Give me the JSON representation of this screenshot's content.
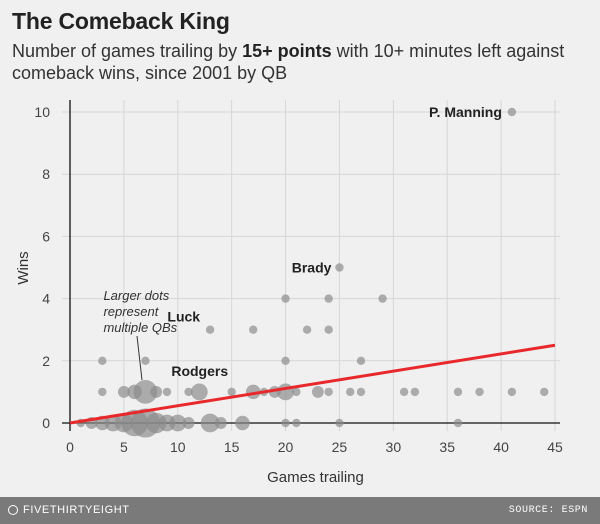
{
  "chart_data": {
    "type": "scatter",
    "title": "The Comeback King",
    "subtitle_pre": "Number of games trailing by ",
    "subtitle_bold": "15+ points",
    "subtitle_post": " with 10+ minutes left against comeback wins, since 2001 by QB",
    "xlabel": "Games trailing",
    "ylabel": "Wins",
    "xlim": [
      0,
      45
    ],
    "ylim": [
      0,
      10
    ],
    "xticks": [
      0,
      5,
      10,
      15,
      20,
      25,
      30,
      35,
      40,
      45
    ],
    "yticks": [
      0,
      2,
      4,
      6,
      8,
      10
    ],
    "grid": true,
    "points": [
      {
        "x": 1,
        "y": 0,
        "n": 1
      },
      {
        "x": 2,
        "y": 0,
        "n": 2
      },
      {
        "x": 3,
        "y": 0,
        "n": 3
      },
      {
        "x": 4,
        "y": 0,
        "n": 4
      },
      {
        "x": 5,
        "y": 0,
        "n": 5
      },
      {
        "x": 6,
        "y": 0,
        "n": 10
      },
      {
        "x": 7,
        "y": 0,
        "n": 12
      },
      {
        "x": 8,
        "y": 0,
        "n": 6
      },
      {
        "x": 9,
        "y": 0,
        "n": 4
      },
      {
        "x": 10,
        "y": 0,
        "n": 4
      },
      {
        "x": 11,
        "y": 0,
        "n": 2
      },
      {
        "x": 13,
        "y": 0,
        "n": 5
      },
      {
        "x": 14,
        "y": 0,
        "n": 2
      },
      {
        "x": 16,
        "y": 0,
        "n": 3
      },
      {
        "x": 20,
        "y": 0,
        "n": 1
      },
      {
        "x": 21,
        "y": 0,
        "n": 1
      },
      {
        "x": 25,
        "y": 0,
        "n": 1
      },
      {
        "x": 36,
        "y": 0,
        "n": 1
      },
      {
        "x": 3,
        "y": 1,
        "n": 1
      },
      {
        "x": 5,
        "y": 1,
        "n": 2
      },
      {
        "x": 6,
        "y": 1,
        "n": 3
      },
      {
        "x": 7,
        "y": 1,
        "n": 8
      },
      {
        "x": 8,
        "y": 1,
        "n": 2
      },
      {
        "x": 9,
        "y": 1,
        "n": 1
      },
      {
        "x": 11,
        "y": 1,
        "n": 1
      },
      {
        "x": 12,
        "y": 1,
        "n": 4
      },
      {
        "x": 15,
        "y": 1,
        "n": 1
      },
      {
        "x": 17,
        "y": 1,
        "n": 3
      },
      {
        "x": 18,
        "y": 1,
        "n": 1
      },
      {
        "x": 19,
        "y": 1,
        "n": 2
      },
      {
        "x": 20,
        "y": 1,
        "n": 4
      },
      {
        "x": 21,
        "y": 1,
        "n": 1
      },
      {
        "x": 23,
        "y": 1,
        "n": 2
      },
      {
        "x": 24,
        "y": 1,
        "n": 1
      },
      {
        "x": 26,
        "y": 1,
        "n": 1
      },
      {
        "x": 27,
        "y": 1,
        "n": 1
      },
      {
        "x": 31,
        "y": 1,
        "n": 1
      },
      {
        "x": 32,
        "y": 1,
        "n": 1
      },
      {
        "x": 36,
        "y": 1,
        "n": 1
      },
      {
        "x": 38,
        "y": 1,
        "n": 1
      },
      {
        "x": 41,
        "y": 1,
        "n": 1
      },
      {
        "x": 44,
        "y": 1,
        "n": 1
      },
      {
        "x": 3,
        "y": 2,
        "n": 1
      },
      {
        "x": 7,
        "y": 2,
        "n": 1
      },
      {
        "x": 20,
        "y": 2,
        "n": 1
      },
      {
        "x": 27,
        "y": 2,
        "n": 1
      },
      {
        "x": 13,
        "y": 3,
        "n": 1
      },
      {
        "x": 17,
        "y": 3,
        "n": 1
      },
      {
        "x": 22,
        "y": 3,
        "n": 1
      },
      {
        "x": 24,
        "y": 3,
        "n": 1
      },
      {
        "x": 20,
        "y": 4,
        "n": 1
      },
      {
        "x": 24,
        "y": 4,
        "n": 1
      },
      {
        "x": 29,
        "y": 4,
        "n": 1
      },
      {
        "x": 25,
        "y": 5,
        "n": 1
      },
      {
        "x": 41,
        "y": 10,
        "n": 1
      }
    ],
    "labels": [
      {
        "text": "P. Manning",
        "x": 41,
        "y": 10
      },
      {
        "text": "Brady",
        "x": 25,
        "y": 5
      },
      {
        "text": "Luck",
        "x": 13,
        "y": 3
      },
      {
        "text": "Rodgers",
        "x": 12,
        "y": 1
      }
    ],
    "annotation": {
      "lines": [
        "Larger dots",
        "represent",
        "multiple QBs"
      ],
      "x": 7,
      "y": 1
    },
    "trendline": {
      "x": [
        0,
        45
      ],
      "y": [
        0,
        2.5
      ]
    },
    "colors": {
      "dot": "#8a8a8a",
      "trend": "#e8282b",
      "grid": "#d6d6d6",
      "zero": "#111111"
    }
  },
  "footer": {
    "brand": "FIVETHIRTYEIGHT",
    "source": "SOURCE: ESPN"
  }
}
